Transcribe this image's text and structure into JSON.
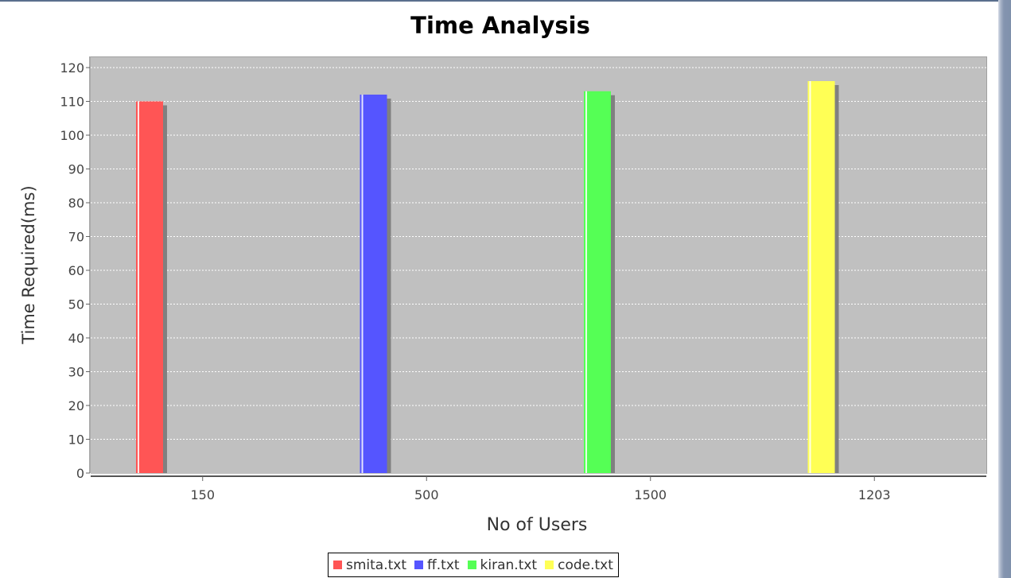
{
  "chart_data": {
    "type": "bar",
    "title": "Time Analysis",
    "xlabel": "No of Users",
    "ylabel": "Time Required(ms)",
    "categories": [
      "150",
      "500",
      "1500",
      "1203"
    ],
    "series": [
      {
        "name": "smita.txt",
        "color": "#ff5555",
        "values": [
          110,
          null,
          null,
          null
        ]
      },
      {
        "name": "ff.txt",
        "color": "#5555ff",
        "values": [
          null,
          112,
          null,
          null
        ]
      },
      {
        "name": "kiran.txt",
        "color": "#55ff55",
        "values": [
          null,
          null,
          113,
          null
        ]
      },
      {
        "name": "code.txt",
        "color": "#ffff55",
        "values": [
          null,
          null,
          null,
          116
        ]
      }
    ],
    "ylim": [
      0,
      120
    ],
    "yticks": [
      0,
      10,
      20,
      30,
      40,
      50,
      60,
      70,
      80,
      90,
      100,
      110,
      120
    ],
    "grid": true,
    "legend_position": "bottom"
  }
}
